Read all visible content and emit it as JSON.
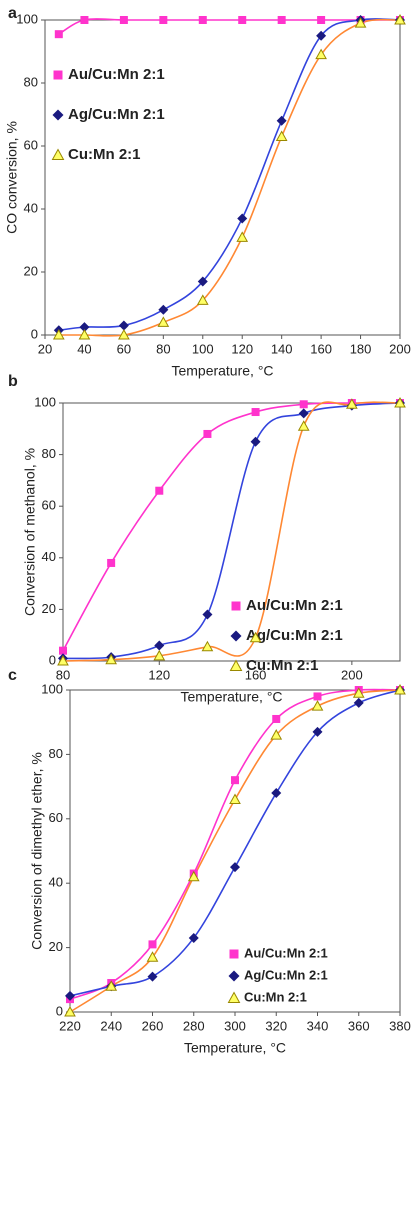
{
  "chart_data": [
    {
      "type": "line",
      "label": "a",
      "x_label": "Temperature, °C",
      "y_label": "CO conversion, %",
      "x": [
        27,
        40,
        60,
        80,
        100,
        120,
        140,
        160,
        180,
        200
      ],
      "xlim": [
        20,
        200
      ],
      "xticks": [
        20,
        40,
        60,
        80,
        100,
        120,
        140,
        160,
        180,
        200
      ],
      "ylim": [
        0,
        100
      ],
      "yticks": [
        0,
        20,
        40,
        60,
        80,
        100
      ],
      "legend": "upper left",
      "series": [
        {
          "name": "Au/Cu:Mn 2:1",
          "color": "#ff33cc",
          "marker": "square",
          "values": [
            95.5,
            100,
            100,
            100,
            100,
            100,
            100,
            100,
            100,
            100
          ]
        },
        {
          "name": "Ag/Cu:Mn 2:1",
          "color": "#1a1a80",
          "line_color": "#3344dd",
          "marker": "diamond",
          "values": [
            1.5,
            2.5,
            3,
            8,
            17,
            37,
            68,
            95,
            100,
            100
          ]
        },
        {
          "name": "Cu:Mn 2:1",
          "color": "#ffff66",
          "line_color": "#ff8833",
          "marker": "triangle",
          "values": [
            0,
            0,
            0,
            4,
            11,
            31,
            63,
            89,
            99,
            100
          ]
        }
      ]
    },
    {
      "type": "line",
      "label": "b",
      "x_label": "Temperature, °C",
      "y_label": "Conversion of methanol, %",
      "x": [
        80,
        100,
        120,
        140,
        160,
        180,
        200,
        220
      ],
      "xlim": [
        80,
        220
      ],
      "xticks": [
        80,
        120,
        160,
        200
      ],
      "ylim": [
        0,
        100
      ],
      "yticks": [
        0,
        20,
        40,
        60,
        80,
        100
      ],
      "legend": "lower right",
      "series": [
        {
          "name": "Au/Cu:Mn 2:1",
          "color": "#ff33cc",
          "marker": "square",
          "values": [
            4,
            38,
            66,
            88,
            96.5,
            99.5,
            100,
            100
          ]
        },
        {
          "name": "Ag/Cu:Mn 2:1",
          "color": "#1a1a80",
          "line_color": "#3344dd",
          "marker": "diamond",
          "values": [
            1,
            1.5,
            6,
            18,
            85,
            96,
            99,
            100
          ]
        },
        {
          "name": "Cu:Mn 2:1",
          "color": "#ffff66",
          "line_color": "#ff8833",
          "marker": "triangle",
          "values": [
            0,
            0.5,
            2,
            5.5,
            9,
            91,
            99.5,
            100
          ]
        }
      ]
    },
    {
      "type": "line",
      "label": "c",
      "x_label": "Temperature, °C",
      "y_label": "Conversion of dimethyl ether, %",
      "x": [
        220,
        240,
        260,
        280,
        300,
        320,
        340,
        360,
        380
      ],
      "xlim": [
        220,
        380
      ],
      "xticks": [
        220,
        240,
        260,
        280,
        300,
        320,
        340,
        360,
        380
      ],
      "ylim": [
        0,
        100
      ],
      "yticks": [
        0,
        20,
        40,
        60,
        80,
        100
      ],
      "legend": "lower right",
      "series": [
        {
          "name": "Au/Cu:Mn 2:1",
          "color": "#ff33cc",
          "marker": "square",
          "values": [
            4,
            9,
            21,
            43,
            72,
            91,
            98,
            100,
            100
          ]
        },
        {
          "name": "Ag/Cu:Mn 2:1",
          "color": "#1a1a80",
          "line_color": "#3344dd",
          "marker": "diamond",
          "values": [
            5,
            8,
            11,
            23,
            45,
            68,
            87,
            96,
            100
          ]
        },
        {
          "name": "Cu:Mn 2:1",
          "color": "#ffff66",
          "line_color": "#ff8833",
          "marker": "triangle",
          "values": [
            0,
            8,
            17,
            42,
            66,
            86,
            95,
            99,
            100
          ]
        }
      ]
    }
  ]
}
